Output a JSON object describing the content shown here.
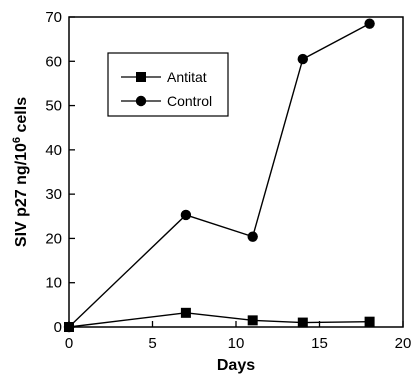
{
  "chart_data": {
    "type": "line",
    "xlabel": "Days",
    "ylabel_main": "SIV p27 ng/10",
    "ylabel_sup": "6",
    "ylabel_tail": " cells",
    "xlim": [
      0,
      20
    ],
    "ylim": [
      0,
      70
    ],
    "xticks": [
      0,
      5,
      10,
      15,
      20
    ],
    "yticks": [
      0,
      10,
      20,
      30,
      40,
      50,
      60,
      70
    ],
    "grid": false,
    "legend_position": "top-left",
    "series": [
      {
        "name": "Antitat",
        "marker": "square",
        "x": [
          0,
          7,
          11,
          14,
          18
        ],
        "y": [
          0,
          3.2,
          1.5,
          1.0,
          1.2
        ]
      },
      {
        "name": "Control",
        "marker": "circle",
        "x": [
          0,
          7,
          11,
          14,
          18
        ],
        "y": [
          0,
          25.3,
          20.4,
          60.5,
          68.5
        ]
      }
    ]
  }
}
